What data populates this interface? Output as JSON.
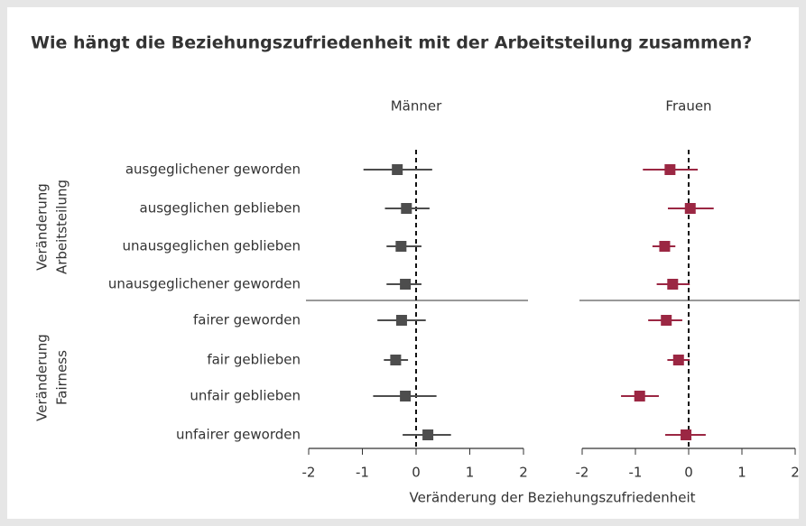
{
  "chart_data": {
    "type": "forest",
    "title": "Wie hängt die Beziehungszufriedenheit mit der Arbeitsteilung zusammen?",
    "xlabel": "Veränderung der Beziehungszufriedenheit",
    "categories": [
      "ausgeglichener geworden",
      "ausgeglichen geblieben",
      "unausgeglichen geblieben",
      "unausgeglichener geworden",
      "fairer geworden",
      "fair geblieben",
      "unfair geblieben",
      "unfairer geworden"
    ],
    "groups": [
      {
        "label": [
          "Veränderung",
          "Arbeitsteilung"
        ]
      },
      {
        "label": [
          "Veränderung",
          "Fairness"
        ]
      }
    ],
    "xlim": [
      -2,
      2
    ],
    "xticks": [
      -2,
      -1,
      0,
      1,
      2
    ],
    "panels": [
      {
        "name": "Männer",
        "color": "#4d4d4d",
        "estimate": [
          -0.35,
          -0.18,
          -0.28,
          -0.2,
          -0.27,
          -0.38,
          -0.2,
          0.22
        ],
        "lower": [
          -0.98,
          -0.58,
          -0.55,
          -0.55,
          -0.72,
          -0.6,
          -0.8,
          -0.25
        ],
        "upper": [
          0.3,
          0.25,
          0.1,
          0.1,
          0.18,
          -0.15,
          0.38,
          0.65
        ]
      },
      {
        "name": "Frauen",
        "color": "#9b2743",
        "estimate": [
          -0.35,
          0.03,
          -0.45,
          -0.3,
          -0.42,
          -0.19,
          -0.92,
          -0.05
        ],
        "lower": [
          -0.86,
          -0.39,
          -0.68,
          -0.6,
          -0.76,
          -0.4,
          -1.27,
          -0.44
        ],
        "upper": [
          0.17,
          0.47,
          -0.25,
          0.02,
          -0.12,
          0.02,
          -0.56,
          0.32
        ]
      }
    ]
  }
}
